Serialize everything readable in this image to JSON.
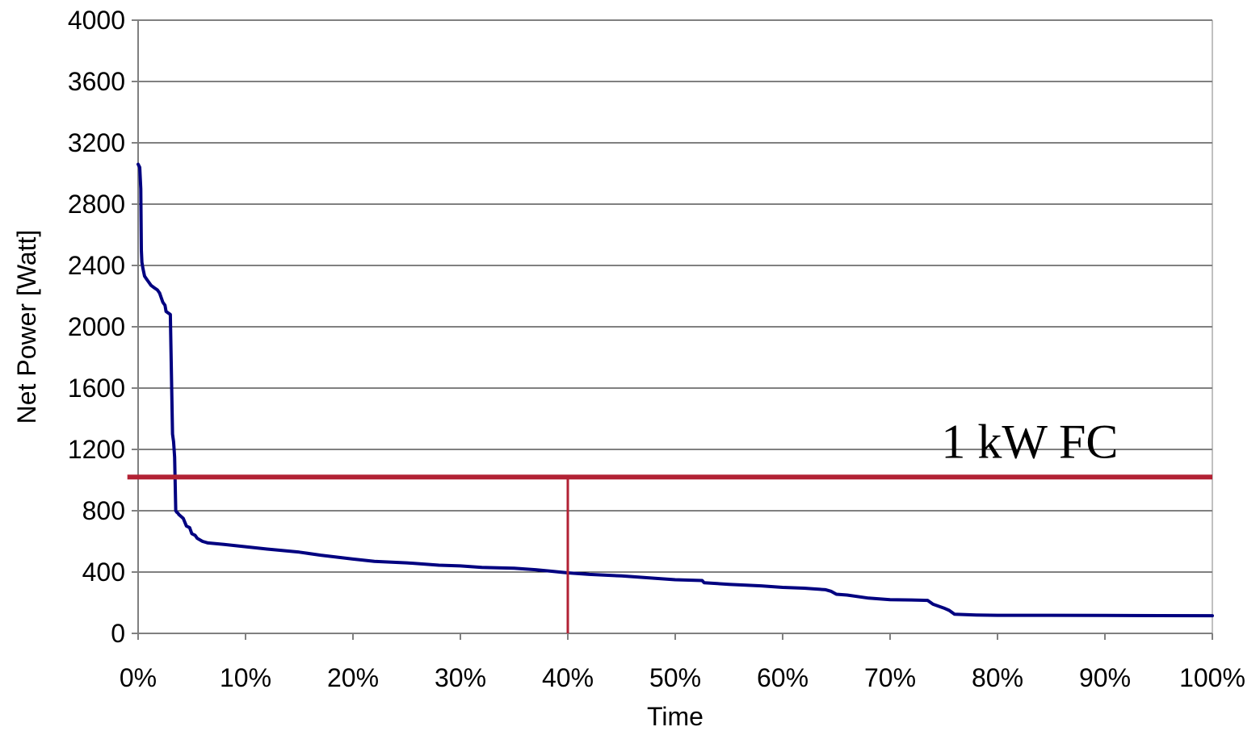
{
  "chart_data": {
    "type": "line",
    "xlabel": "Time",
    "ylabel": "Net Power [Watt]",
    "xlim": [
      0,
      100
    ],
    "ylim": [
      0,
      4000
    ],
    "x_unit": "%",
    "x_ticks": [
      0,
      10,
      20,
      30,
      40,
      50,
      60,
      70,
      80,
      90,
      100
    ],
    "x_tick_labels": [
      "0%",
      "10%",
      "20%",
      "30%",
      "40%",
      "50%",
      "60%",
      "70%",
      "80%",
      "90%",
      "100%"
    ],
    "y_ticks": [
      0,
      400,
      800,
      1200,
      1600,
      2000,
      2400,
      2800,
      3200,
      3600,
      4000
    ],
    "y_tick_labels": [
      "0",
      "400",
      "800",
      "1200",
      "1600",
      "2000",
      "2400",
      "2800",
      "3200",
      "3600",
      "4000"
    ],
    "grid": "horizontal",
    "legend": "none",
    "series": [
      {
        "color": "#000080",
        "x": [
          0,
          0.15,
          0.25,
          0.3,
          0.35,
          0.45,
          0.6,
          0.8,
          1.0,
          1.2,
          1.5,
          1.8,
          2.0,
          2.3,
          2.5,
          2.6,
          2.8,
          3.0,
          3.2,
          3.3,
          3.4,
          3.5,
          3.6,
          3.7,
          3.75,
          3.8,
          4.2,
          4.5,
          4.8,
          5.0,
          5.3,
          5.5,
          6.0,
          6.5,
          8.0,
          10.0,
          12.0,
          15.0,
          17.0,
          20.0,
          22.0,
          25.0,
          28.0,
          30.0,
          32.0,
          35.0,
          37.0,
          38.5,
          40.0,
          42.0,
          45.0,
          48.0,
          50.0,
          52.5,
          52.7,
          55.0,
          58.0,
          60.0,
          62.0,
          64.0,
          64.5,
          65.0,
          66.0,
          68.0,
          70.0,
          72.0,
          73.5,
          74.0,
          75.0,
          75.5,
          76.0,
          78.0,
          80.0,
          85.0,
          90.0,
          95.0,
          100.0
        ],
        "y": [
          3060,
          3040,
          2900,
          2500,
          2420,
          2380,
          2330,
          2310,
          2290,
          2270,
          2255,
          2240,
          2220,
          2160,
          2140,
          2100,
          2090,
          2080,
          1300,
          1250,
          1150,
          800,
          790,
          785,
          780,
          775,
          750,
          700,
          690,
          650,
          640,
          620,
          600,
          590,
          580,
          565,
          550,
          530,
          510,
          485,
          470,
          460,
          445,
          440,
          430,
          425,
          415,
          405,
          395,
          385,
          375,
          360,
          350,
          345,
          330,
          320,
          310,
          300,
          295,
          285,
          275,
          255,
          250,
          230,
          220,
          218,
          215,
          190,
          165,
          150,
          125,
          120,
          118,
          118,
          117,
          116,
          115
        ]
      }
    ],
    "reference_lines": [
      {
        "orientation": "horizontal",
        "y": 1020,
        "x_from": -1,
        "x_to": 100,
        "color": "#B22234"
      },
      {
        "orientation": "vertical",
        "x": 40,
        "y_from": 0,
        "y_to": 1020,
        "color": "#B22234"
      }
    ],
    "annotations": [
      {
        "text": "1 kW FC",
        "x": 83,
        "y": 1250
      }
    ]
  },
  "colors": {
    "series_line": "#000080",
    "reference_line": "#B22234",
    "gridline": "#000000",
    "axis": "#808080"
  }
}
